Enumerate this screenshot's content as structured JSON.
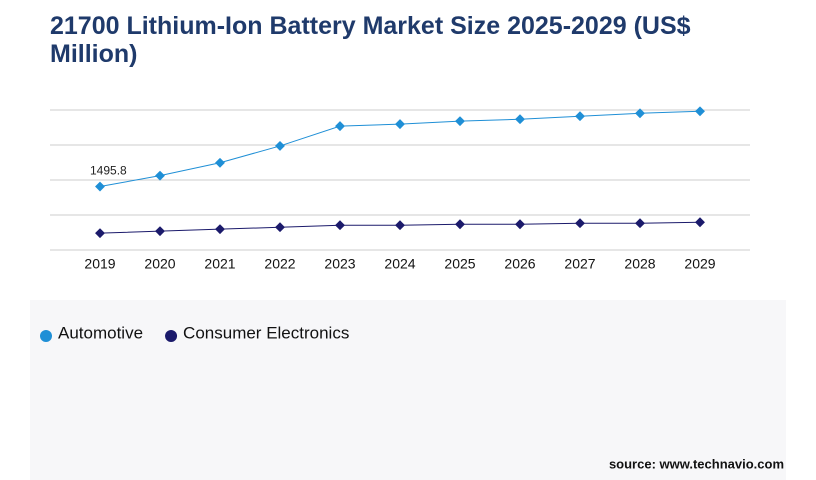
{
  "chart_data": {
    "type": "line",
    "title": "21700 Lithium-Ion Battery Market Size 2025-2029 (US$ Million)",
    "categories": [
      "2019",
      "2020",
      "2021",
      "2022",
      "2023",
      "2024",
      "2025",
      "2026",
      "2027",
      "2028",
      "2029"
    ],
    "series": [
      {
        "name": "Automotive",
        "color": "#1f8fd6",
        "values": [
          1495.8,
          1752,
          2056,
          2453,
          2920,
          2967,
          3037,
          3083,
          3153,
          3223,
          3270
        ]
      },
      {
        "name": "Consumer Electronics",
        "color": "#1b1a6b",
        "values": [
          397,
          444,
          491,
          537,
          584,
          584,
          607,
          607,
          631,
          631,
          654
        ]
      }
    ],
    "ylim": [
      0,
      3300
    ],
    "grid": true,
    "source": "source: www.technavio.com"
  }
}
